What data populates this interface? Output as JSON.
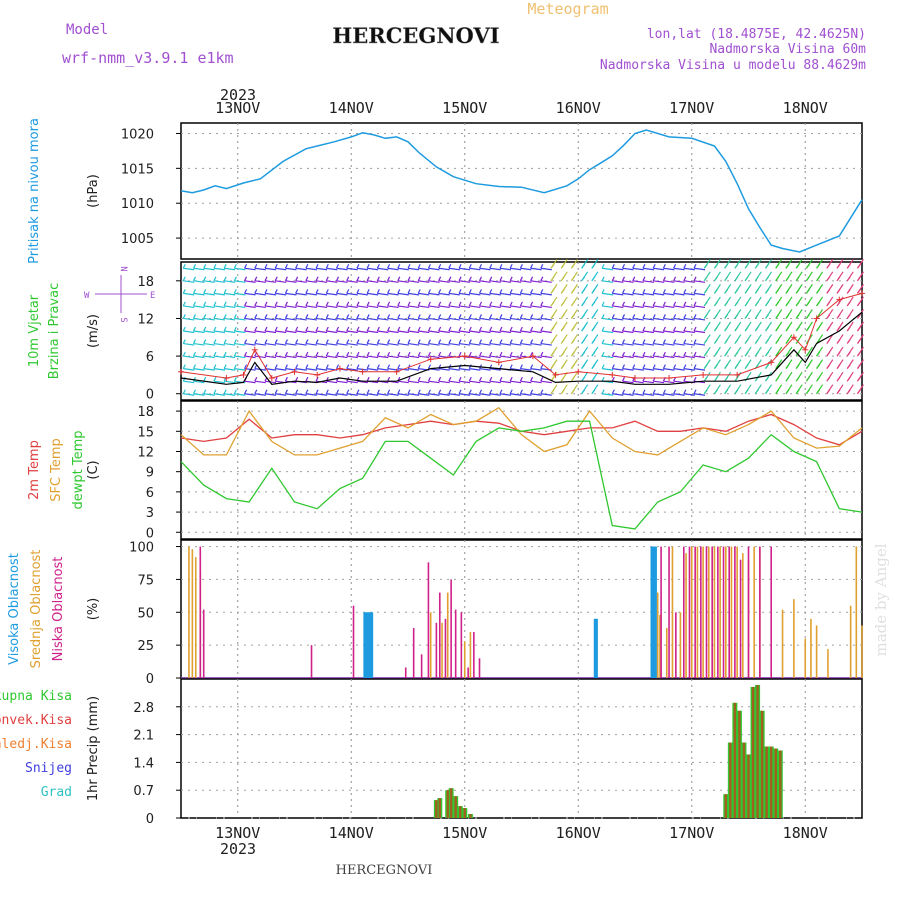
{
  "header": {
    "model_label": "Model",
    "model_name": "wrf-nmm_v3.9.1 e1km",
    "title": "HERCEGNOVI",
    "meteogram_label": "Meteogram",
    "lonlat": "lon,lat (18.4875E, 42.4625N)",
    "elevation": "Nadmorska Visina 60m",
    "model_elevation": "Nadmorska Visina u modelu 88.4629m"
  },
  "footer": {
    "station": "HERCEGNOVI",
    "watermark": "made by Angel"
  },
  "time_axis": {
    "year": "2023",
    "days": [
      {
        "label": "13NOV",
        "t": 0.5
      },
      {
        "label": "14NOV",
        "t": 1.5
      },
      {
        "label": "15NOV",
        "t": 2.5
      },
      {
        "label": "16NOV",
        "t": 3.5
      },
      {
        "label": "17NOV",
        "t": 4.5
      },
      {
        "label": "18NOV",
        "t": 5.5
      }
    ],
    "range_days": [
      0,
      6
    ]
  },
  "compass": {
    "n": "N",
    "e": "E",
    "w": "W",
    "s": "S"
  },
  "chart_data": [
    {
      "id": "pressure",
      "type": "line",
      "ylabels": [
        "Pritisak na nivou mora"
      ],
      "unit": "(hPa)",
      "ylim": [
        1002,
        1021.5
      ],
      "yticks": [
        1005,
        1010,
        1015,
        1020
      ],
      "color": "#1e9be0",
      "x": [
        0.0,
        0.1,
        0.2,
        0.3,
        0.4,
        0.55,
        0.7,
        0.9,
        1.1,
        1.2,
        1.35,
        1.5,
        1.6,
        1.7,
        1.8,
        1.9,
        2.0,
        2.1,
        2.25,
        2.4,
        2.6,
        2.8,
        3.0,
        3.2,
        3.4,
        3.5,
        3.6,
        3.7,
        3.8,
        3.9,
        4.0,
        4.1,
        4.3,
        4.5,
        4.7,
        4.8,
        4.9,
        5.0,
        5.1,
        5.2,
        5.3,
        5.45,
        5.6,
        5.8,
        6.0
      ],
      "values": [
        1011.8,
        1011.5,
        1011.9,
        1012.5,
        1012.1,
        1012.9,
        1013.5,
        1016.0,
        1017.8,
        1018.2,
        1018.8,
        1019.5,
        1020.1,
        1019.8,
        1019.3,
        1019.5,
        1018.8,
        1017.2,
        1015.2,
        1013.8,
        1012.8,
        1012.4,
        1012.3,
        1011.5,
        1012.5,
        1013.5,
        1014.8,
        1015.8,
        1016.8,
        1018.3,
        1020.0,
        1020.5,
        1019.5,
        1019.3,
        1018.2,
        1016.0,
        1012.8,
        1009.2,
        1006.5,
        1004.0,
        1003.5,
        1003.0,
        1004.0,
        1005.3,
        1010.5
      ]
    },
    {
      "id": "wind",
      "type": "line",
      "ylabels": [
        "10m Vjetar",
        "Brzina i Pravac"
      ],
      "unit": "(m/s)",
      "ylim": [
        -1,
        21
      ],
      "yticks": [
        0,
        6,
        12,
        18
      ],
      "barb_levels": [
        0,
        2,
        4,
        6,
        8,
        10,
        12,
        14,
        16,
        18,
        20
      ],
      "series": [
        {
          "key": "speed",
          "color": "#000000",
          "x": [
            0.0,
            0.4,
            0.55,
            0.65,
            0.8,
            1.0,
            1.2,
            1.4,
            1.6,
            1.9,
            2.2,
            2.5,
            2.8,
            3.1,
            3.3,
            3.5,
            3.8,
            4.0,
            4.3,
            4.6,
            4.9,
            5.2,
            5.4,
            5.5,
            5.6,
            5.8,
            6.0
          ],
          "values": [
            2.5,
            1.5,
            1.8,
            5.0,
            1.5,
            2.0,
            1.8,
            2.5,
            2.0,
            2.0,
            4.0,
            4.5,
            4.0,
            3.5,
            1.8,
            2.0,
            2.0,
            1.5,
            1.5,
            2.0,
            2.0,
            3.0,
            7.0,
            5.0,
            8.0,
            10.0,
            13.0
          ]
        },
        {
          "key": "gust",
          "color": "#e03030",
          "marker": "+",
          "x": [
            0.0,
            0.4,
            0.55,
            0.65,
            0.8,
            1.0,
            1.2,
            1.4,
            1.6,
            1.9,
            2.2,
            2.5,
            2.8,
            3.1,
            3.3,
            3.5,
            3.8,
            4.0,
            4.3,
            4.6,
            4.9,
            5.2,
            5.4,
            5.5,
            5.6,
            5.8,
            6.0
          ],
          "values": [
            3.5,
            2.5,
            3.0,
            7.0,
            2.5,
            3.5,
            3.0,
            4.0,
            3.5,
            3.5,
            5.5,
            6.0,
            5.0,
            6.0,
            3.0,
            3.5,
            3.0,
            2.5,
            2.5,
            3.0,
            3.0,
            5.0,
            9.0,
            7.0,
            12.0,
            15.0,
            16.0
          ]
        }
      ]
    },
    {
      "id": "temperature",
      "type": "line",
      "ylabels": [
        "2m Temp",
        "SFC Temp",
        "dewpt Temp"
      ],
      "unit": "(C)",
      "ylim": [
        -1,
        19.5
      ],
      "yticks": [
        0,
        3,
        6,
        9,
        12,
        15,
        18
      ],
      "series": [
        {
          "name": "2m Temp",
          "color": "#e04040",
          "x": [
            0.0,
            0.2,
            0.4,
            0.6,
            0.8,
            1.0,
            1.2,
            1.4,
            1.6,
            1.8,
            2.0,
            2.2,
            2.4,
            2.6,
            2.8,
            3.0,
            3.2,
            3.4,
            3.6,
            3.8,
            4.0,
            4.2,
            4.4,
            4.6,
            4.8,
            5.0,
            5.2,
            5.4,
            5.6,
            5.8,
            6.0
          ],
          "values": [
            14.0,
            13.5,
            14.0,
            16.8,
            14.0,
            14.5,
            14.5,
            14.0,
            14.5,
            15.5,
            16.0,
            16.5,
            16.0,
            16.5,
            16.2,
            15.0,
            14.5,
            15.0,
            15.5,
            15.5,
            16.5,
            15.0,
            15.0,
            15.5,
            15.0,
            16.5,
            17.5,
            16.0,
            14.0,
            13.0,
            15.0
          ]
        },
        {
          "name": "SFC Temp",
          "color": "#e0a030",
          "x": [
            0.0,
            0.2,
            0.4,
            0.6,
            0.8,
            1.0,
            1.2,
            1.4,
            1.6,
            1.8,
            2.0,
            2.2,
            2.4,
            2.6,
            2.8,
            3.0,
            3.2,
            3.4,
            3.6,
            3.8,
            4.0,
            4.2,
            4.4,
            4.6,
            4.8,
            5.0,
            5.2,
            5.4,
            5.6,
            5.8,
            6.0
          ],
          "values": [
            14.5,
            11.5,
            11.5,
            18.0,
            13.5,
            11.5,
            11.5,
            12.5,
            13.5,
            17.0,
            15.5,
            17.5,
            16.0,
            16.5,
            18.5,
            14.5,
            12.0,
            13.0,
            18.0,
            14.0,
            12.0,
            11.5,
            13.5,
            15.5,
            14.5,
            16.0,
            18.0,
            14.0,
            12.5,
            12.8,
            15.5
          ]
        },
        {
          "name": "dewpt Temp",
          "color": "#30c830",
          "x": [
            0.0,
            0.2,
            0.4,
            0.6,
            0.8,
            1.0,
            1.2,
            1.4,
            1.6,
            1.8,
            2.0,
            2.2,
            2.4,
            2.6,
            2.8,
            3.0,
            3.2,
            3.4,
            3.6,
            3.8,
            4.0,
            4.2,
            4.4,
            4.6,
            4.8,
            5.0,
            5.2,
            5.4,
            5.6,
            5.8,
            6.0
          ],
          "values": [
            10.5,
            7.0,
            5.0,
            4.5,
            9.5,
            4.5,
            3.5,
            6.5,
            8.0,
            13.5,
            13.5,
            11.0,
            8.5,
            13.5,
            15.5,
            15.0,
            15.5,
            16.5,
            16.5,
            1.0,
            0.5,
            4.5,
            6.0,
            10.0,
            9.0,
            11.0,
            14.5,
            12.0,
            10.5,
            3.5,
            3.0
          ]
        }
      ]
    },
    {
      "id": "clouds",
      "type": "bar",
      "ylabels": [
        "Visoka Oblacnost",
        "Srednja Oblacnost",
        "Niska Oblacnost"
      ],
      "unit": "(%)",
      "ylim": [
        0,
        105
      ],
      "yticks": [
        0,
        25,
        50,
        75,
        100
      ],
      "series": [
        {
          "name": "Visoka Oblacnost",
          "color": "#1e9be0",
          "x": [
            1.62,
            1.64,
            1.66,
            1.68,
            3.65,
            3.66,
            4.15,
            4.16,
            4.17,
            4.18
          ],
          "values": [
            50,
            50,
            50,
            50,
            45,
            45,
            100,
            100,
            100,
            100
          ]
        },
        {
          "name": "Srednja Oblacnost",
          "color": "#e0a030",
          "x": [
            0.07,
            0.1,
            0.13,
            0.17,
            2.2,
            2.3,
            2.35,
            2.5,
            2.55,
            4.2,
            4.22,
            4.28,
            4.33,
            4.4,
            4.45,
            4.5,
            4.55,
            4.6,
            4.65,
            4.7,
            4.75,
            4.8,
            4.85,
            4.9,
            4.95,
            5.0,
            5.05,
            5.1,
            5.3,
            5.4,
            5.5,
            5.55,
            5.6,
            5.7,
            5.9,
            5.95,
            6.0
          ],
          "values": [
            100,
            98,
            92,
            80,
            50,
            42,
            65,
            28,
            35,
            65,
            48,
            38,
            100,
            50,
            95,
            100,
            100,
            100,
            100,
            100,
            100,
            100,
            100,
            100,
            95,
            90,
            100,
            100,
            52,
            60,
            30,
            45,
            40,
            22,
            55,
            100,
            40
          ]
        },
        {
          "name": "Niska Oblacnost",
          "color": "#d0208a",
          "x": [
            0.17,
            0.2,
            1.15,
            1.52,
            1.98,
            2.05,
            2.12,
            2.18,
            2.25,
            2.28,
            2.33,
            2.38,
            2.42,
            2.47,
            2.53,
            2.58,
            2.63,
            4.23,
            4.3,
            4.36,
            4.43,
            4.48,
            4.53,
            4.58,
            4.63,
            4.68,
            4.73,
            4.78,
            4.83,
            4.88,
            4.93,
            5.0,
            5.1,
            5.2
          ],
          "values": [
            100,
            52,
            25,
            55,
            8,
            38,
            18,
            88,
            42,
            65,
            45,
            75,
            52,
            50,
            8,
            35,
            15,
            100,
            100,
            50,
            100,
            100,
            100,
            100,
            100,
            100,
            100,
            100,
            100,
            100,
            90,
            100,
            100,
            100
          ]
        }
      ]
    },
    {
      "id": "precip",
      "type": "bar",
      "ylabels": [
        "Ukupna Kisa",
        "Konvek.Kisa",
        "Zaledj.Kisa",
        "Snijeg",
        "Grad"
      ],
      "unit": "1hr Precip (mm)",
      "ylim": [
        0,
        3.5
      ],
      "yticks": [
        0,
        0.7,
        1.4,
        2.1,
        2.8
      ],
      "label_colors": [
        "#30c830",
        "#e04040",
        "#f08030",
        "#4040e0",
        "#30c0c0"
      ],
      "series": [
        {
          "name": "Ukupna Kisa",
          "color": "#30c830",
          "x": [
            2.25,
            2.28,
            2.35,
            2.38,
            2.42,
            2.46,
            2.5,
            2.55,
            4.8,
            4.84,
            4.88,
            4.92,
            4.96,
            5.0,
            5.04,
            5.08,
            5.12,
            5.16,
            5.2,
            5.24,
            5.28
          ],
          "values": [
            0.45,
            0.5,
            0.7,
            0.75,
            0.55,
            0.3,
            0.25,
            0.1,
            0.6,
            1.9,
            2.9,
            2.7,
            1.9,
            1.6,
            3.3,
            3.35,
            2.7,
            1.8,
            1.8,
            1.75,
            1.7
          ]
        },
        {
          "name": "Konvek.Kisa",
          "color": "#a06020",
          "x": [
            2.25,
            2.28,
            2.35,
            2.38,
            2.42,
            2.46,
            2.5,
            2.55,
            4.8,
            4.84,
            4.88,
            4.92,
            4.96,
            5.0,
            5.04,
            5.08,
            5.12,
            5.16,
            5.2,
            5.24,
            5.28
          ],
          "values": [
            0.45,
            0.5,
            0.7,
            0.75,
            0.55,
            0.3,
            0.25,
            0.1,
            0.6,
            1.9,
            2.9,
            2.7,
            1.9,
            1.6,
            3.3,
            3.35,
            2.7,
            1.8,
            1.8,
            1.75,
            1.7
          ]
        }
      ]
    }
  ]
}
